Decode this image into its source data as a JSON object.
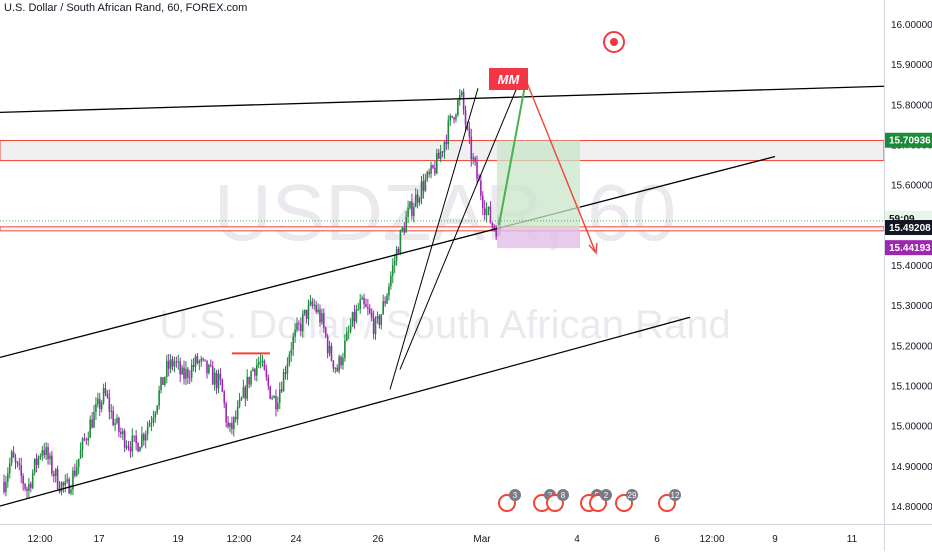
{
  "header": {
    "title": "U.S. Dollar / South African Rand, 60, FOREX.com"
  },
  "watermark": {
    "symbol": "USDZAR, 60",
    "name": "U.S. Dollar / South African Rand"
  },
  "colors": {
    "up_candle": "#1b8a3a",
    "down_candle": "#9c27b0",
    "line": "#000000",
    "zone_border": "#f44336",
    "green_box": "#c8e6c9",
    "purple_box": "#e1bee7",
    "mm_label": "#f23645",
    "arrow_up": "#4caf50",
    "arrow_down": "#f44336",
    "current_price": "#131722",
    "stop_label": "#9c27b0",
    "zone_label": "#1b8a3a"
  },
  "annotations": {
    "mm_label": "MM"
  },
  "price_axis": {
    "ticks": [
      "16.00000",
      "15.90000",
      "15.80000",
      "15.70000",
      "15.60000",
      "15.50000",
      "15.40000",
      "15.30000",
      "15.20000",
      "15.10000",
      "15.00000",
      "14.90000",
      "14.80000"
    ],
    "labels": {
      "zone": "15.70936",
      "countdown": "59:09",
      "current": "15.49208",
      "stop": "15.44193"
    }
  },
  "time_axis": {
    "ticks": [
      "12:00",
      "17",
      "19",
      "12:00",
      "24",
      "26",
      "Mar",
      "4",
      "6",
      "12:00",
      "9",
      "11"
    ]
  },
  "events": [
    "3",
    "2",
    "8",
    "5",
    "2",
    "29",
    "12"
  ],
  "chart_data": {
    "type": "candlestick",
    "title": "U.S. Dollar / South African Rand, 60, FOREX.com",
    "ylim": [
      14.76,
      16.06
    ],
    "y_ticks": [
      16.0,
      15.9,
      15.8,
      15.7,
      15.6,
      15.5,
      15.4,
      15.3,
      15.2,
      15.1,
      15.0,
      14.9,
      14.8
    ],
    "x_ticks": [
      "12:00",
      "17",
      "19",
      "12:00",
      "24",
      "26",
      "Mar",
      "4",
      "6",
      "12:00",
      "9",
      "11"
    ],
    "close_path": [
      14.86,
      14.92,
      14.88,
      14.84,
      14.9,
      14.95,
      14.9,
      14.86,
      14.84,
      14.88,
      14.94,
      15.0,
      15.04,
      15.08,
      15.02,
      14.98,
      14.96,
      14.95,
      14.98,
      15.02,
      15.08,
      15.14,
      15.16,
      15.12,
      15.14,
      15.16,
      15.14,
      15.12,
      15.1,
      14.98,
      15.02,
      15.08,
      15.14,
      15.16,
      15.1,
      15.06,
      15.12,
      15.2,
      15.24,
      15.28,
      15.3,
      15.26,
      15.18,
      15.14,
      15.2,
      15.26,
      15.3,
      15.28,
      15.24,
      15.3,
      15.38,
      15.46,
      15.52,
      15.56,
      15.6,
      15.62,
      15.66,
      15.72,
      15.78,
      15.82,
      15.7,
      15.62,
      15.55,
      15.5,
      15.49
    ],
    "current_price": 15.49208,
    "zone_price": 15.70936,
    "stop_price": 15.44193,
    "resistance_zone": [
      15.66,
      15.71
    ],
    "support_zone": [
      15.485,
      15.495
    ],
    "trend_lines": [
      {
        "from": [
          0,
          15.78
        ],
        "to": [
          884,
          15.845
        ]
      },
      {
        "from": [
          0,
          15.17
        ],
        "to": [
          775,
          15.67
        ]
      },
      {
        "from": [
          0,
          14.8
        ],
        "to": [
          690,
          15.27
        ]
      }
    ],
    "projection": {
      "entry": 15.5,
      "peak": 15.86,
      "target": 15.44
    }
  }
}
